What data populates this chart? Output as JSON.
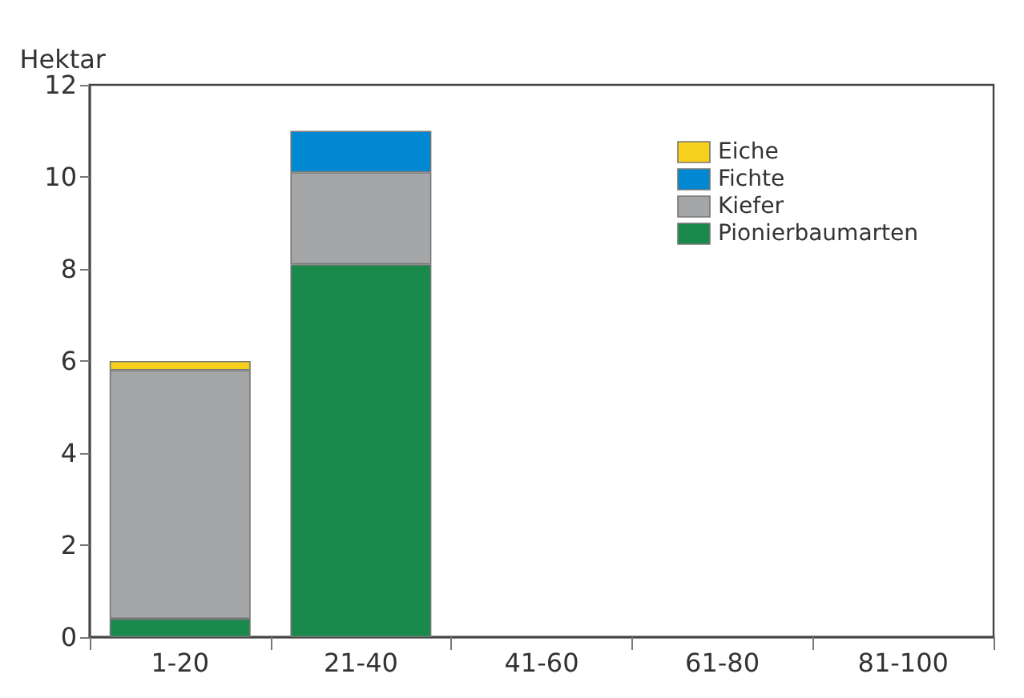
{
  "chart_data": {
    "type": "bar",
    "ylabel": "Hektar",
    "categories": [
      "1-20",
      "21-40",
      "41-60",
      "61-80",
      "81-100"
    ],
    "stacked": true,
    "series": [
      {
        "name": "Pionierbaumarten",
        "color": "#1a8a4c",
        "values": [
          0.4,
          8.1,
          0,
          0,
          0
        ]
      },
      {
        "name": "Kiefer",
        "color": "#a5a6a8",
        "values": [
          5.4,
          2.0,
          0,
          0,
          0
        ]
      },
      {
        "name": "Fichte",
        "color": "#0089d2",
        "values": [
          0,
          0.9,
          0,
          0,
          0
        ]
      },
      {
        "name": "Eiche",
        "color": "#f7cf1d",
        "values": [
          0.2,
          0,
          0,
          0,
          0
        ]
      }
    ],
    "ylim": [
      0,
      12
    ],
    "yticks": [
      0,
      2,
      4,
      6,
      8,
      10,
      12
    ],
    "grid": false,
    "legend": "top right"
  }
}
